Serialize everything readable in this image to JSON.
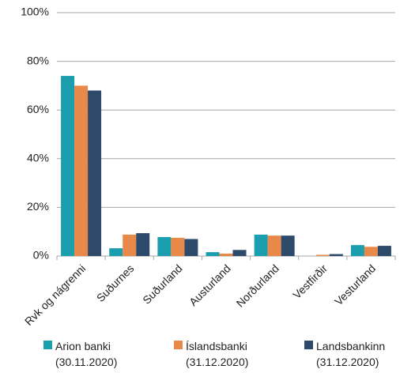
{
  "chart_data": {
    "type": "bar",
    "categories": [
      "Rvk og nágrenni",
      "Suðurnes",
      "Suðurland",
      "Austurland",
      "Norðurland",
      "Vestfirðir",
      "Vesturland"
    ],
    "series": [
      {
        "name": "Arion banki (30.11.2020)",
        "color": "#1b9fae",
        "values": [
          74,
          3.2,
          7.8,
          1.6,
          8.8,
          0,
          4.5
        ]
      },
      {
        "name": "Íslandsbanki (31.12.2020)",
        "color": "#e8894a",
        "values": [
          70,
          8.8,
          7.5,
          1,
          8.4,
          0.5,
          3.8
        ]
      },
      {
        "name": "Landsbankinn (31.12.2020)",
        "color": "#2e4a6b",
        "values": [
          68,
          9.4,
          7,
          2.5,
          8.4,
          0.8,
          4.2
        ]
      }
    ],
    "ylim": [
      0,
      100
    ],
    "yticks": [
      {
        "value": 0,
        "label": "0%"
      },
      {
        "value": 20,
        "label": "20%"
      },
      {
        "value": 40,
        "label": "40%"
      },
      {
        "value": 60,
        "label": "60%"
      },
      {
        "value": 80,
        "label": "80%"
      },
      {
        "value": 100,
        "label": "100%"
      }
    ],
    "grid": true,
    "legend": "bottom"
  }
}
